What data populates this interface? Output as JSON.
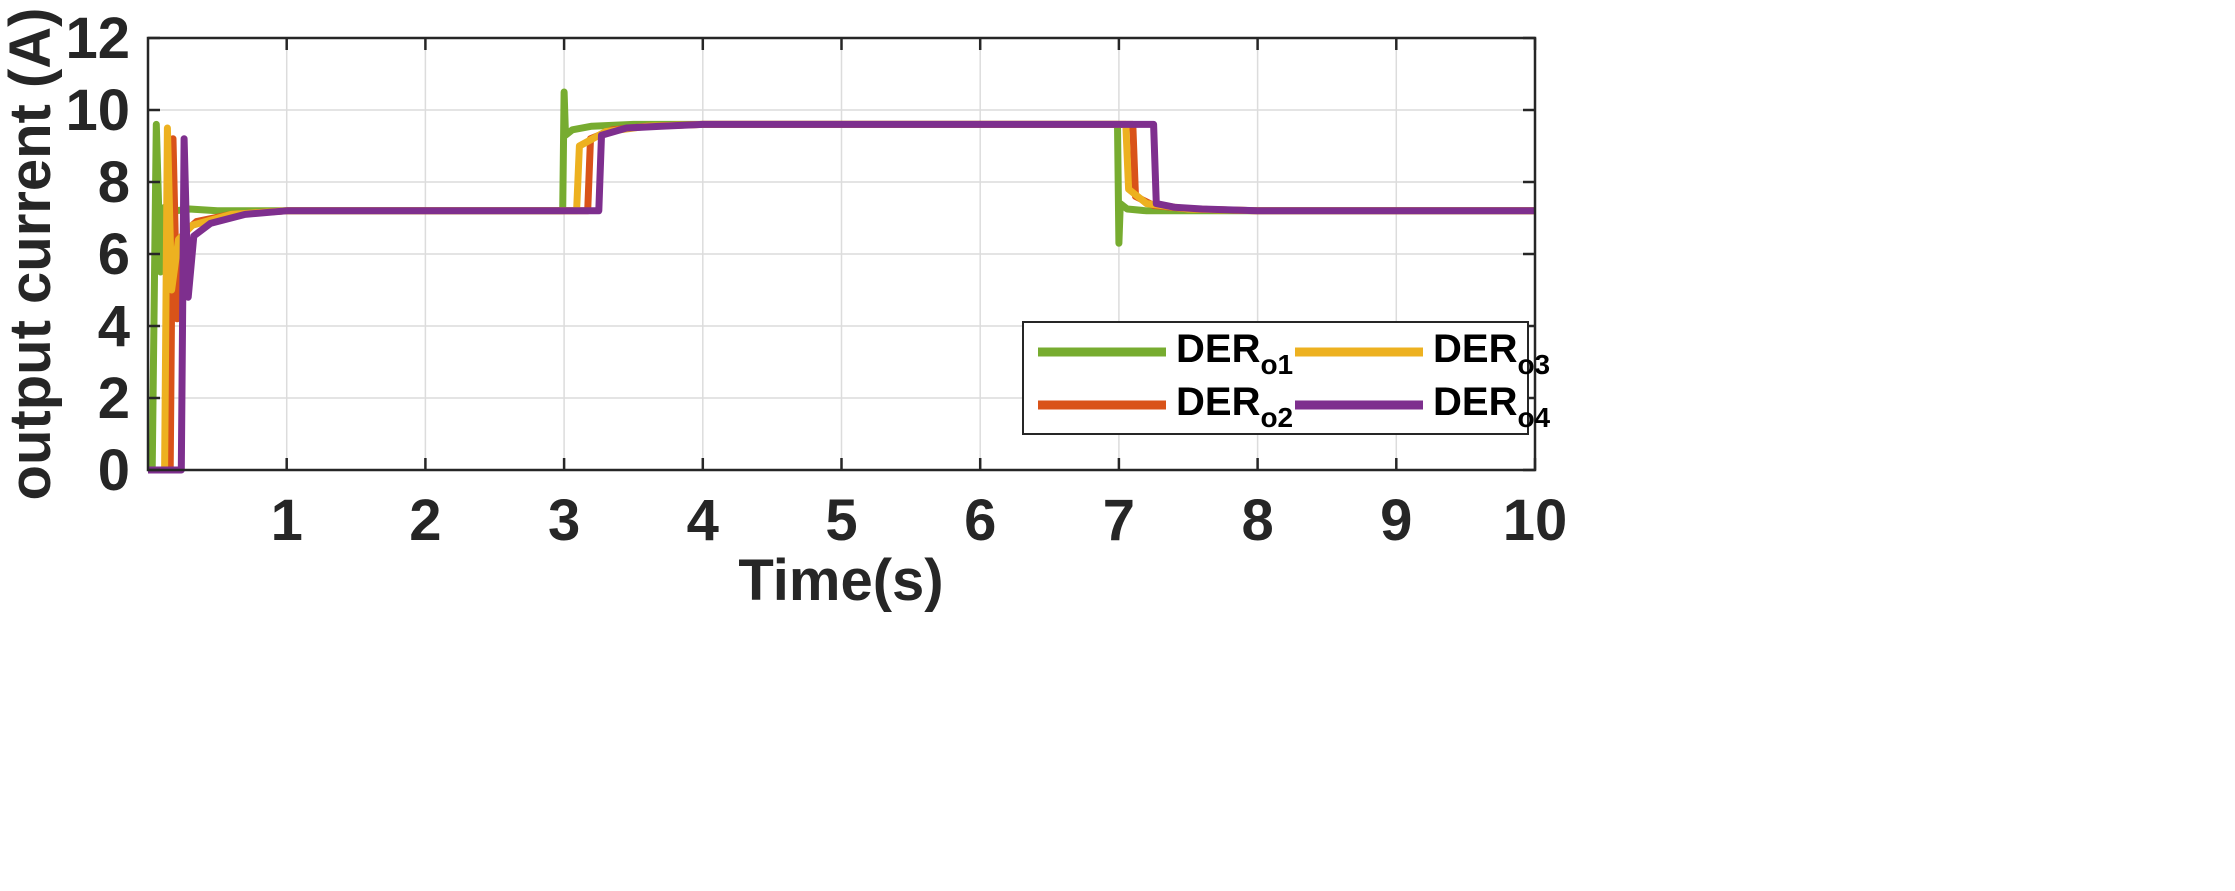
{
  "chart_data": {
    "type": "line",
    "xlabel": "Time(s)",
    "ylabel": "output current (A)",
    "xlim": [
      0,
      10
    ],
    "ylim": [
      0,
      12
    ],
    "xticks": [
      1,
      2,
      3,
      4,
      5,
      6,
      7,
      8,
      9,
      10
    ],
    "yticks": [
      0,
      2,
      4,
      6,
      8,
      10,
      12
    ],
    "grid": true,
    "legend_position": "bottom-right",
    "series": [
      {
        "name": "DER",
        "subscript": "o1",
        "color": "#77AC30",
        "x": [
          0,
          0.03,
          0.06,
          0.09,
          0.12,
          0.2,
          0.3,
          0.5,
          1,
          2,
          2.99,
          3.0,
          3.01,
          3.06,
          3.2,
          3.5,
          4,
          6,
          6.99,
          7.0,
          7.01,
          7.06,
          7.2,
          7.5,
          8,
          10
        ],
        "values": [
          0,
          0,
          9.6,
          5.5,
          7.3,
          7.2,
          7.25,
          7.2,
          7.2,
          7.2,
          7.2,
          10.5,
          9.3,
          9.45,
          9.55,
          9.6,
          9.6,
          9.6,
          9.6,
          6.3,
          7.4,
          7.25,
          7.2,
          7.2,
          7.2,
          7.2
        ]
      },
      {
        "name": "DER",
        "subscript": "o2",
        "color": "#D95319",
        "x": [
          0,
          0.16,
          0.18,
          0.21,
          0.26,
          0.35,
          0.6,
          1,
          2,
          3.17,
          3.19,
          3.35,
          3.6,
          4,
          6,
          7.1,
          7.12,
          7.25,
          7.5,
          8,
          10
        ],
        "values": [
          0,
          0,
          9.2,
          4.2,
          6.6,
          6.9,
          7.1,
          7.2,
          7.2,
          7.2,
          9.2,
          9.45,
          9.55,
          9.6,
          9.6,
          9.6,
          7.6,
          7.35,
          7.25,
          7.2,
          7.2
        ]
      },
      {
        "name": "DER",
        "subscript": "o3",
        "color": "#EDB120",
        "x": [
          0,
          0.12,
          0.14,
          0.17,
          0.22,
          0.32,
          0.6,
          1,
          2,
          3.09,
          3.11,
          3.3,
          3.6,
          4,
          6,
          7.05,
          7.07,
          7.2,
          7.5,
          8,
          10
        ],
        "values": [
          0,
          0,
          9.5,
          5.0,
          6.4,
          6.8,
          7.1,
          7.2,
          7.2,
          7.2,
          9.0,
          9.4,
          9.55,
          9.6,
          9.6,
          9.6,
          7.8,
          7.4,
          7.25,
          7.2,
          7.2
        ]
      },
      {
        "name": "DER",
        "subscript": "o4",
        "color": "#7E2F8E",
        "x": [
          0,
          0.24,
          0.26,
          0.29,
          0.33,
          0.45,
          0.7,
          1,
          2,
          3.25,
          3.27,
          3.45,
          3.7,
          4,
          6,
          7.25,
          7.27,
          7.4,
          7.6,
          8,
          10
        ],
        "values": [
          0,
          0,
          9.2,
          4.8,
          6.5,
          6.85,
          7.1,
          7.2,
          7.2,
          7.2,
          9.3,
          9.5,
          9.55,
          9.6,
          9.6,
          9.6,
          7.4,
          7.3,
          7.25,
          7.2,
          7.2
        ]
      }
    ]
  }
}
